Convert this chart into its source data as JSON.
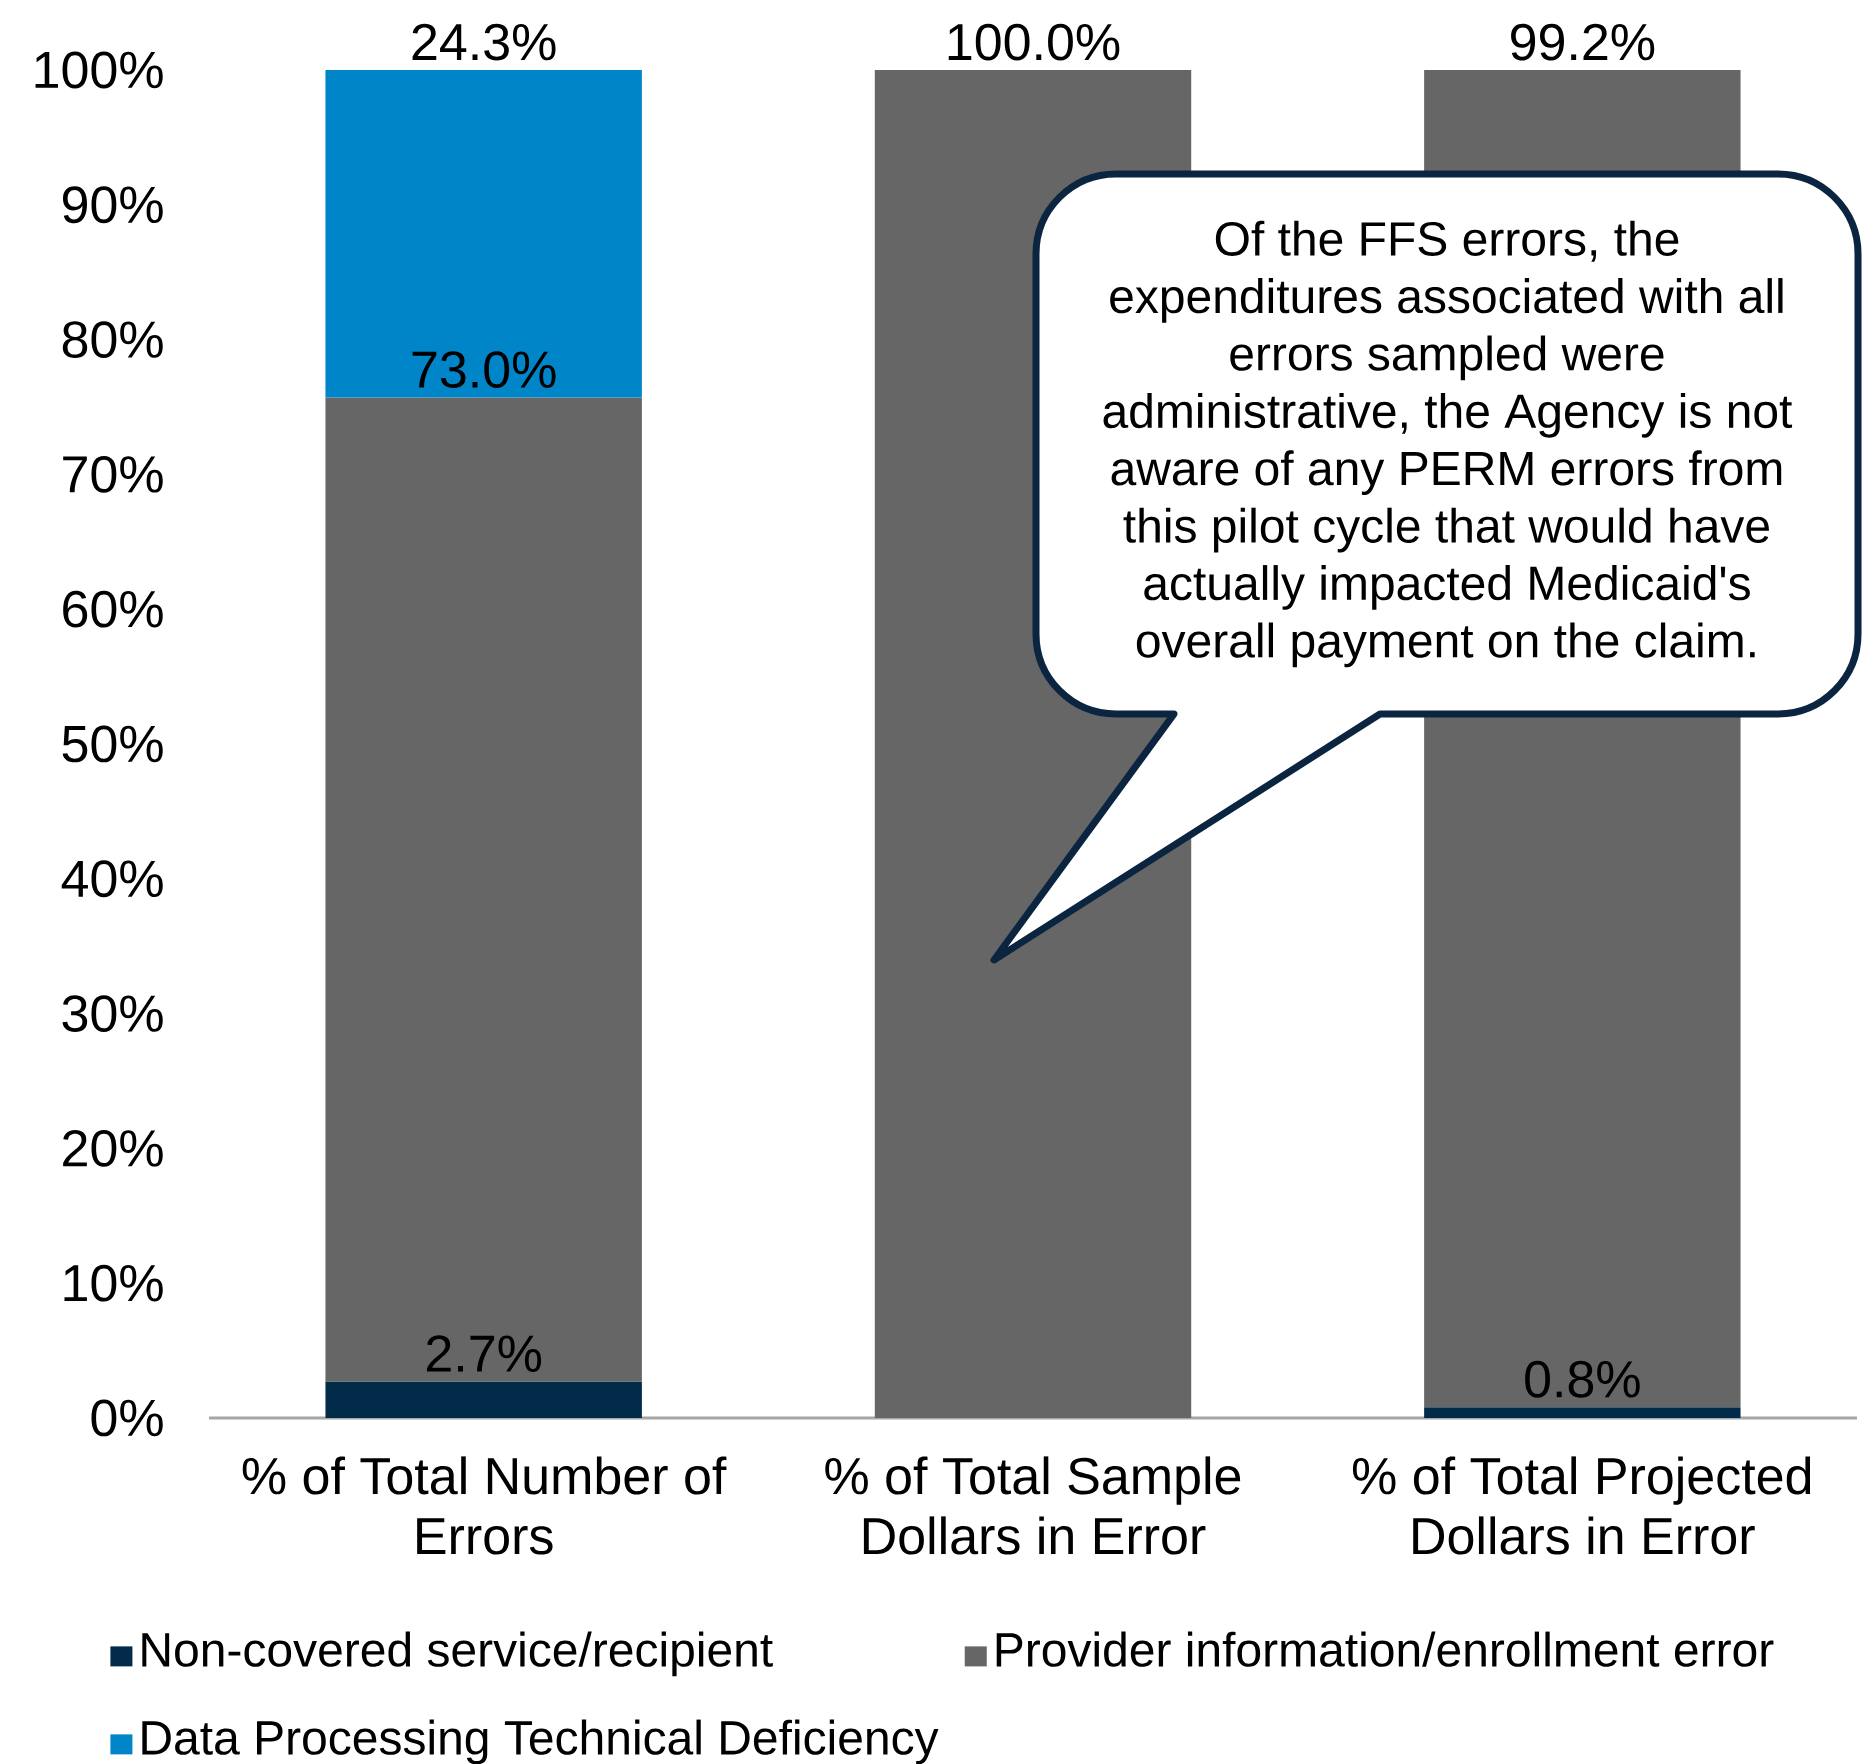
{
  "chart_data": {
    "type": "bar",
    "stacked": true,
    "categories": [
      "% of Total Number of Errors",
      "% of Total Sample Dollars in Error",
      "% of Total Projected Dollars in Error"
    ],
    "series": [
      {
        "name": "Non-covered service/recipient",
        "color": "#022b49",
        "values": [
          2.7,
          0,
          0.8
        ],
        "value_labels": [
          "2.7%",
          null,
          "0.8%"
        ]
      },
      {
        "name": "Provider information/enrollment error",
        "color": "#666666",
        "values": [
          73.0,
          100.0,
          99.2
        ],
        "value_labels": [
          "73.0%",
          "100.0%",
          "99.2%"
        ]
      },
      {
        "name": "Data Processing Technical Deficiency",
        "color": "#0085c9",
        "values": [
          24.3,
          0,
          0
        ],
        "value_labels": [
          "24.3%",
          null,
          null
        ]
      }
    ],
    "ylim": [
      0,
      100
    ],
    "yticks": [
      {
        "value": 0,
        "label": "0%"
      },
      {
        "value": 10,
        "label": "10%"
      },
      {
        "value": 20,
        "label": "20%"
      },
      {
        "value": 30,
        "label": "30%"
      },
      {
        "value": 40,
        "label": "40%"
      },
      {
        "value": 50,
        "label": "50%"
      },
      {
        "value": 60,
        "label": "60%"
      },
      {
        "value": 70,
        "label": "70%"
      },
      {
        "value": 80,
        "label": "80%"
      },
      {
        "value": 90,
        "label": "90%"
      },
      {
        "value": 100,
        "label": "100%"
      }
    ],
    "legend": "bottom",
    "annotations": [
      "Of the FFS errors, the expenditures associated with all errors sampled were administrative, the Agency is not aware of any PERM errors from this pilot cycle that would have actually impacted Medicaid's overall payment on the claim."
    ]
  }
}
